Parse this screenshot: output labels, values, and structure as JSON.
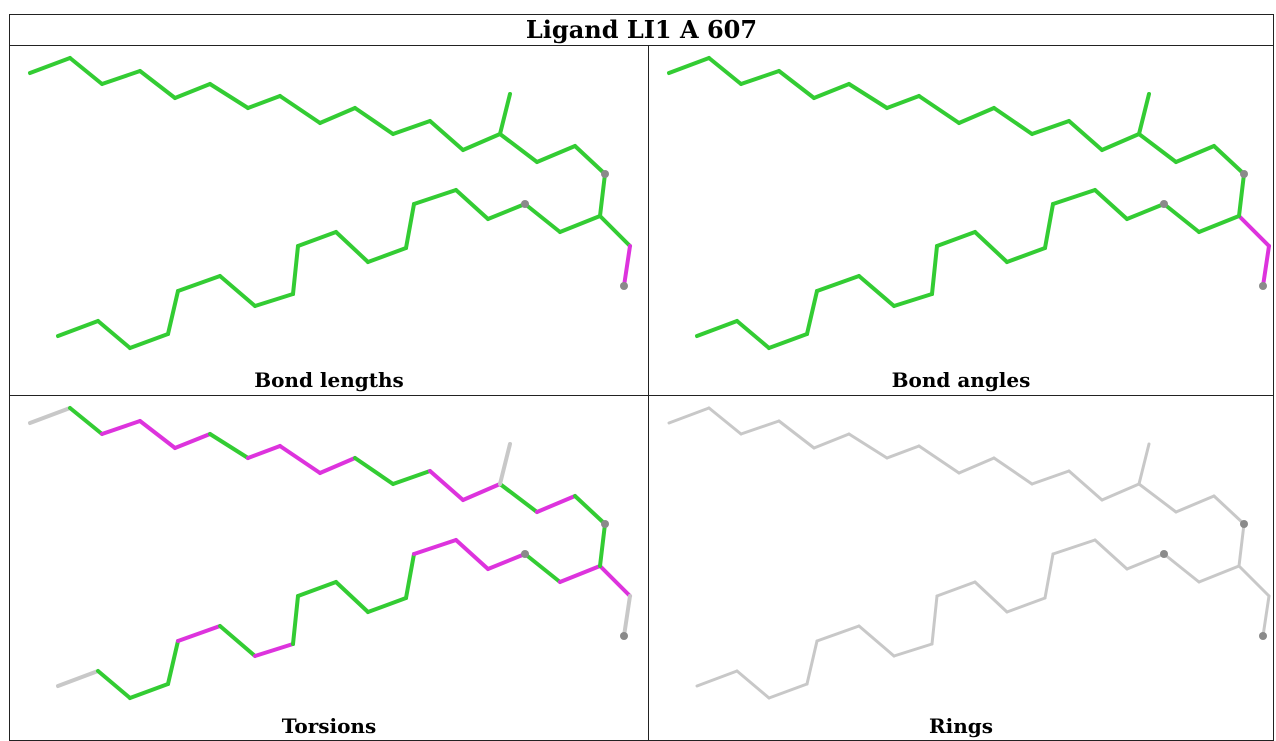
{
  "title": "Ligand LI1 A 607",
  "colors": {
    "good": "#33cc33",
    "outlier": "#dd33dd",
    "neutral": "#c8c8c8",
    "atom": "#8a8a8a"
  },
  "panels": [
    {
      "label": "Bond lengths"
    },
    {
      "label": "Bond angles"
    },
    {
      "label": "Torsions"
    },
    {
      "label": "Rings"
    }
  ]
}
